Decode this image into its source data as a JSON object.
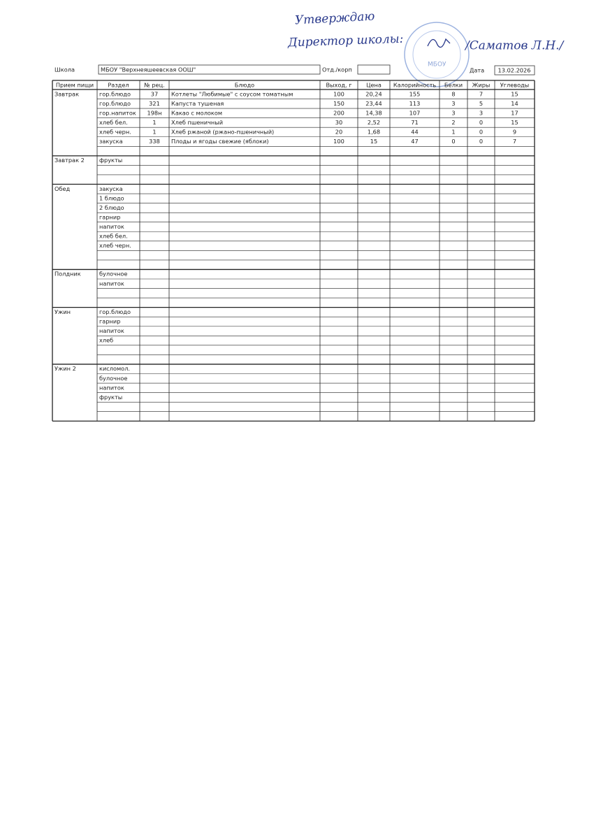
{
  "approval": {
    "line1": "Утверждаю",
    "line2": "Директор школы:",
    "signer": "/Саматов Л.Н./",
    "stamp": "МБОУ"
  },
  "header": {
    "school_label": "Школа",
    "school": "МБОУ \"Верхнеяшеевская ООШ\"",
    "dept_label": "Отд./корп",
    "date_label": "Дата",
    "date": "13.02.2026"
  },
  "table": {
    "columns": [
      "Прием пищи",
      "Раздел",
      "№ рец.",
      "Блюдо",
      "Выход, г",
      "Цена",
      "Калорийность",
      "Белки",
      "Жиры",
      "Углеводы"
    ],
    "meals": [
      {
        "name": "Завтрак",
        "rows": [
          [
            "гор.блюдо",
            "37",
            "Котлеты \"Любимые\" с соусом томатным",
            "100",
            "20,24",
            "155",
            "8",
            "7",
            "15"
          ],
          [
            "гор.блюдо",
            "321",
            "Капуста тушеная",
            "150",
            "23,44",
            "113",
            "3",
            "5",
            "14"
          ],
          [
            "гор.напиток",
            "198н",
            "Какао с молоком",
            "200",
            "14,38",
            "107",
            "3",
            "3",
            "17"
          ],
          [
            "хлеб бел.",
            "1",
            "Хлеб пшеничный",
            "30",
            "2,52",
            "71",
            "2",
            "0",
            "15"
          ],
          [
            "хлеб черн.",
            "1",
            "Хлеб ржаной (ржано-пшеничный)",
            "20",
            "1,68",
            "44",
            "1",
            "0",
            "9"
          ],
          [
            "закуска",
            "338",
            "Плоды и ягоды свежие (яблоки)",
            "100",
            "15",
            "47",
            "0",
            "0",
            "7"
          ],
          null
        ]
      },
      {
        "name": "Завтрак 2",
        "rows": [
          [
            "фрукты"
          ],
          null,
          null
        ]
      },
      {
        "name": "Обед",
        "rows": [
          [
            "закуска"
          ],
          [
            "1 блюдо"
          ],
          [
            "2 блюдо"
          ],
          [
            "гарнир"
          ],
          [
            "напиток"
          ],
          [
            "хлеб бел."
          ],
          [
            "хлеб черн."
          ],
          null,
          null
        ]
      },
      {
        "name": "Полдник",
        "rows": [
          [
            "булочное"
          ],
          [
            "напиток"
          ],
          null,
          null
        ]
      },
      {
        "name": "Ужин",
        "rows": [
          [
            "гор.блюдо"
          ],
          [
            "гарнир"
          ],
          [
            "напиток"
          ],
          [
            "хлеб"
          ],
          null,
          null
        ]
      },
      {
        "name": "Ужин 2",
        "rows": [
          [
            "кисломол."
          ],
          [
            "булочное"
          ],
          [
            "напиток"
          ],
          [
            "фрукты"
          ],
          null,
          null
        ]
      }
    ]
  }
}
